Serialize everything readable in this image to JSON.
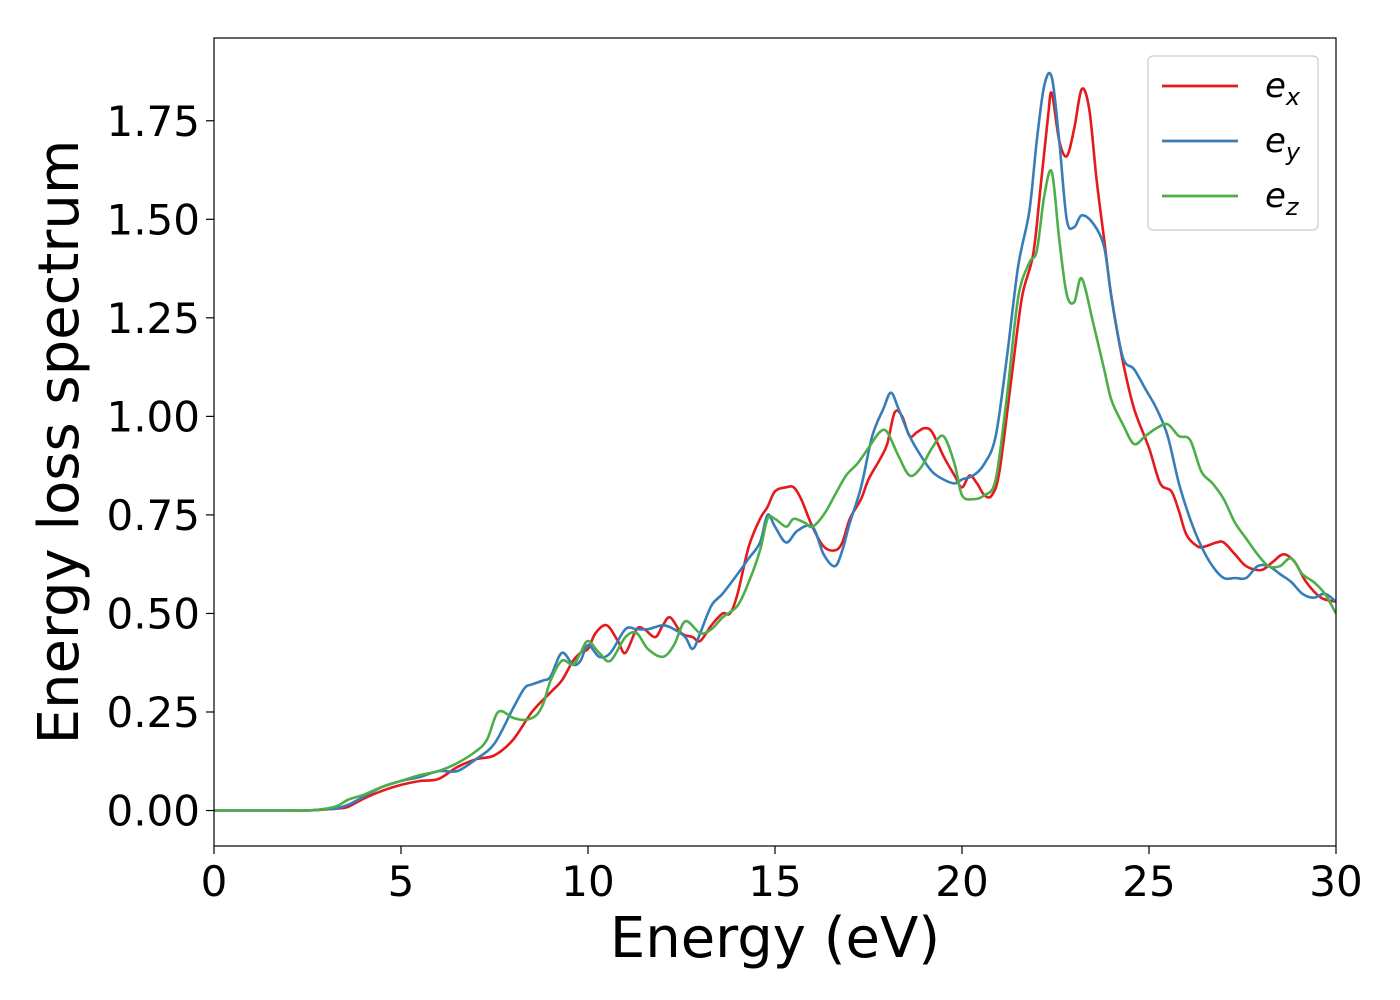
{
  "chart_data": {
    "type": "line",
    "title": "",
    "xlabel": "Energy (eV)",
    "ylabel": "Energy loss spectrum",
    "xlim": [
      0,
      30
    ],
    "ylim": [
      -0.09,
      1.96
    ],
    "xticks": [
      0,
      5,
      10,
      15,
      20,
      25,
      30
    ],
    "xtick_labels": [
      "0",
      "5",
      "10",
      "15",
      "20",
      "25",
      "30"
    ],
    "yticks": [
      0.0,
      0.25,
      0.5,
      0.75,
      1.0,
      1.25,
      1.5,
      1.75
    ],
    "ytick_labels": [
      "0.00",
      "0.25",
      "0.50",
      "0.75",
      "1.00",
      "1.25",
      "1.50",
      "1.75"
    ],
    "grid": false,
    "legend": "top-right",
    "series": [
      {
        "name": "e",
        "subscript": "x",
        "color": "#e41a1c",
        "x": [
          0,
          1,
          2,
          2.5,
          3,
          3.3,
          3.6,
          4,
          4.5,
          5,
          5.5,
          6,
          6.5,
          7,
          7.5,
          8,
          8.5,
          9,
          9.3,
          9.6,
          9.8,
          10,
          10.2,
          10.5,
          10.8,
          11,
          11.3,
          11.5,
          11.8,
          12,
          12.2,
          12.5,
          12.8,
          13,
          13.3,
          13.6,
          13.8,
          14,
          14.3,
          14.6,
          14.8,
          15,
          15.3,
          15.5,
          15.7,
          16,
          16.3,
          16.6,
          16.8,
          17,
          17.3,
          17.5,
          17.8,
          18,
          18.2,
          18.4,
          18.6,
          18.8,
          19,
          19.2,
          19.5,
          19.8,
          20,
          20.2,
          20.4,
          20.6,
          20.8,
          21,
          21.3,
          21.6,
          21.9,
          22.1,
          22.3,
          22.4,
          22.6,
          22.8,
          23,
          23.2,
          23.4,
          23.6,
          23.8,
          24,
          24.3,
          24.6,
          25,
          25.3,
          25.6,
          25.8,
          26,
          26.3,
          26.5,
          26.8,
          27,
          27.3,
          27.6,
          28,
          28.3,
          28.6,
          28.9,
          29.2,
          29.6,
          30
        ],
        "y": [
          0,
          0,
          0,
          0,
          0.003,
          0.005,
          0.01,
          0.03,
          0.05,
          0.065,
          0.075,
          0.08,
          0.11,
          0.13,
          0.14,
          0.18,
          0.25,
          0.3,
          0.33,
          0.38,
          0.4,
          0.41,
          0.45,
          0.47,
          0.43,
          0.4,
          0.46,
          0.46,
          0.44,
          0.47,
          0.49,
          0.45,
          0.44,
          0.43,
          0.47,
          0.5,
          0.5,
          0.55,
          0.67,
          0.74,
          0.77,
          0.81,
          0.82,
          0.82,
          0.79,
          0.72,
          0.67,
          0.66,
          0.68,
          0.74,
          0.79,
          0.84,
          0.89,
          0.93,
          1.01,
          1,
          0.95,
          0.96,
          0.97,
          0.96,
          0.9,
          0.85,
          0.82,
          0.85,
          0.83,
          0.8,
          0.8,
          0.86,
          1.08,
          1.3,
          1.41,
          1.58,
          1.76,
          1.82,
          1.7,
          1.66,
          1.73,
          1.83,
          1.78,
          1.6,
          1.45,
          1.3,
          1.14,
          1.02,
          0.92,
          0.83,
          0.81,
          0.76,
          0.7,
          0.67,
          0.67,
          0.68,
          0.68,
          0.65,
          0.62,
          0.61,
          0.63,
          0.65,
          0.63,
          0.58,
          0.54,
          0.53
        ]
      },
      {
        "name": "e",
        "subscript": "y",
        "color": "#377eb8",
        "x": [
          0,
          1,
          2,
          2.5,
          3,
          3.3,
          3.6,
          4,
          4.5,
          5,
          5.5,
          6,
          6.5,
          7,
          7.5,
          8,
          8.3,
          8.5,
          8.8,
          9,
          9.3,
          9.6,
          9.8,
          10,
          10.3,
          10.6,
          11,
          11.3,
          11.6,
          12,
          12.3,
          12.6,
          12.8,
          13,
          13.3,
          13.6,
          14,
          14.3,
          14.6,
          14.8,
          15,
          15.3,
          15.6,
          16,
          16.3,
          16.6,
          16.8,
          17,
          17.3,
          17.6,
          17.9,
          18.1,
          18.3,
          18.6,
          18.9,
          19.2,
          19.5,
          19.8,
          20,
          20.3,
          20.6,
          20.9,
          21.2,
          21.5,
          21.8,
          22,
          22.2,
          22.4,
          22.6,
          22.8,
          23,
          23.2,
          23.5,
          23.8,
          24,
          24.3,
          24.6,
          24.9,
          25.2,
          25.5,
          25.8,
          26.1,
          26.4,
          26.7,
          27,
          27.3,
          27.6,
          27.9,
          28.2,
          28.5,
          28.8,
          29.1,
          29.4,
          29.7,
          30
        ],
        "y": [
          0,
          0,
          0,
          0,
          0.003,
          0.006,
          0.015,
          0.035,
          0.06,
          0.075,
          0.085,
          0.1,
          0.1,
          0.13,
          0.17,
          0.26,
          0.31,
          0.32,
          0.33,
          0.34,
          0.4,
          0.37,
          0.38,
          0.42,
          0.39,
          0.4,
          0.46,
          0.46,
          0.46,
          0.47,
          0.46,
          0.44,
          0.41,
          0.45,
          0.52,
          0.55,
          0.6,
          0.64,
          0.68,
          0.75,
          0.72,
          0.68,
          0.71,
          0.72,
          0.65,
          0.62,
          0.66,
          0.73,
          0.82,
          0.95,
          1.02,
          1.06,
          1.02,
          0.95,
          0.9,
          0.86,
          0.84,
          0.83,
          0.84,
          0.85,
          0.88,
          0.95,
          1.15,
          1.38,
          1.52,
          1.7,
          1.84,
          1.86,
          1.7,
          1.5,
          1.48,
          1.51,
          1.49,
          1.43,
          1.3,
          1.15,
          1.12,
          1.07,
          1.02,
          0.95,
          0.83,
          0.74,
          0.67,
          0.62,
          0.59,
          0.59,
          0.59,
          0.62,
          0.62,
          0.6,
          0.58,
          0.55,
          0.54,
          0.55,
          0.53
        ]
      },
      {
        "name": "e",
        "subscript": "z",
        "color": "#4daf4a",
        "x": [
          0,
          1,
          2,
          2.5,
          3,
          3.3,
          3.6,
          4,
          4.5,
          5,
          5.5,
          6,
          6.5,
          7,
          7.3,
          7.6,
          8,
          8.3,
          8.6,
          8.8,
          9,
          9.3,
          9.6,
          9.8,
          10,
          10.3,
          10.6,
          11,
          11.3,
          11.6,
          12,
          12.3,
          12.6,
          13,
          13.3,
          13.6,
          14,
          14.3,
          14.6,
          14.8,
          15,
          15.3,
          15.5,
          15.8,
          16,
          16.3,
          16.6,
          16.9,
          17.2,
          17.5,
          17.8,
          18,
          18.3,
          18.6,
          18.9,
          19.2,
          19.5,
          19.8,
          20,
          20.3,
          20.6,
          20.9,
          21.2,
          21.5,
          21.8,
          22,
          22.2,
          22.4,
          22.6,
          22.8,
          23,
          23.2,
          23.5,
          23.8,
          24,
          24.3,
          24.6,
          24.9,
          25.2,
          25.5,
          25.8,
          26.1,
          26.4,
          26.7,
          27,
          27.3,
          27.6,
          27.9,
          28.2,
          28.5,
          28.8,
          29.1,
          29.4,
          29.7,
          30
        ],
        "y": [
          0,
          0,
          0,
          0,
          0.005,
          0.012,
          0.028,
          0.04,
          0.06,
          0.075,
          0.09,
          0.1,
          0.12,
          0.15,
          0.18,
          0.25,
          0.235,
          0.23,
          0.24,
          0.27,
          0.33,
          0.38,
          0.37,
          0.4,
          0.43,
          0.4,
          0.38,
          0.44,
          0.45,
          0.41,
          0.39,
          0.42,
          0.48,
          0.45,
          0.46,
          0.49,
          0.52,
          0.58,
          0.66,
          0.74,
          0.74,
          0.72,
          0.74,
          0.73,
          0.72,
          0.75,
          0.8,
          0.85,
          0.88,
          0.92,
          0.96,
          0.96,
          0.9,
          0.85,
          0.87,
          0.92,
          0.95,
          0.88,
          0.8,
          0.79,
          0.8,
          0.84,
          1.05,
          1.3,
          1.39,
          1.42,
          1.56,
          1.62,
          1.45,
          1.31,
          1.29,
          1.35,
          1.24,
          1.12,
          1.04,
          0.98,
          0.93,
          0.95,
          0.97,
          0.98,
          0.95,
          0.94,
          0.86,
          0.83,
          0.79,
          0.73,
          0.69,
          0.65,
          0.62,
          0.62,
          0.64,
          0.6,
          0.58,
          0.55,
          0.5
        ]
      }
    ]
  }
}
